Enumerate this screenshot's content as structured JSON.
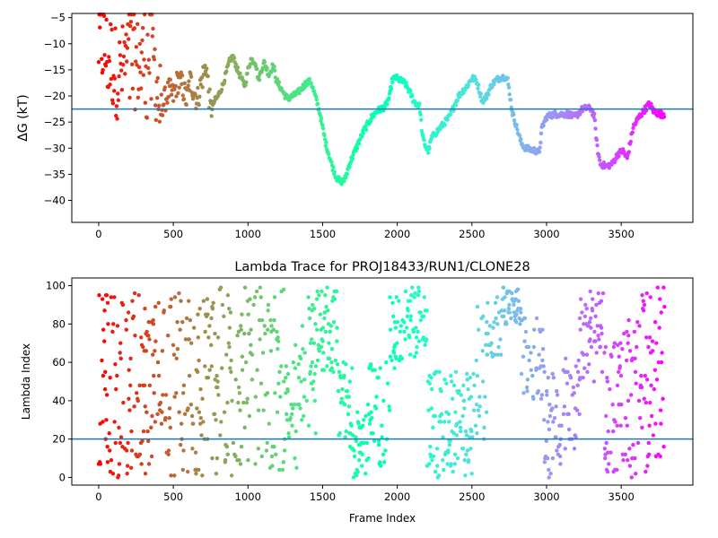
{
  "chart_data": [
    {
      "type": "scatter",
      "title": "",
      "xlabel": "",
      "ylabel": "ΔG (kT)",
      "xlim": [
        -180,
        3980
      ],
      "ylim": [
        -44.2,
        -4.2
      ],
      "xticks": [
        0,
        500,
        1000,
        1500,
        2000,
        2500,
        3000,
        3500
      ],
      "yticks": [
        -40,
        -35,
        -30,
        -25,
        -20,
        -15,
        -10,
        -5
      ],
      "hline": -22.5,
      "hline_color": "#1f77b4",
      "colormap": "rainbow",
      "x_max": 3790,
      "grid": false,
      "legend": "none",
      "trace": [
        [
          0,
          -10
        ],
        [
          25,
          -10
        ],
        [
          50,
          -12
        ],
        [
          80,
          -13
        ],
        [
          110,
          -15
        ],
        [
          140,
          -16
        ],
        [
          175,
          -14
        ],
        [
          210,
          -12
        ],
        [
          250,
          -14
        ],
        [
          290,
          -13
        ],
        [
          330,
          -12
        ],
        [
          370,
          -13
        ],
        [
          410,
          -22
        ],
        [
          440,
          -21
        ],
        [
          470,
          -19
        ],
        [
          500,
          -20
        ],
        [
          530,
          -17
        ],
        [
          560,
          -18
        ],
        [
          590,
          -21
        ],
        [
          610,
          -17
        ],
        [
          640,
          -19
        ],
        [
          660,
          -21
        ],
        [
          690,
          -17
        ],
        [
          720,
          -14
        ],
        [
          750,
          -23
        ],
        [
          775,
          -21
        ],
        [
          800,
          -20
        ],
        [
          830,
          -18
        ],
        [
          860,
          -15
        ],
        [
          880,
          -13
        ],
        [
          900,
          -12.5
        ],
        [
          930,
          -15
        ],
        [
          960,
          -17
        ],
        [
          980,
          -18
        ],
        [
          1000,
          -15
        ],
        [
          1020,
          -13
        ],
        [
          1050,
          -13.5
        ],
        [
          1070,
          -17
        ],
        [
          1090,
          -15
        ],
        [
          1110,
          -13.5
        ],
        [
          1140,
          -16
        ],
        [
          1170,
          -14
        ],
        [
          1190,
          -17
        ],
        [
          1220,
          -18.5
        ],
        [
          1250,
          -20
        ],
        [
          1270,
          -20.5
        ],
        [
          1300,
          -20
        ],
        [
          1330,
          -19.5
        ],
        [
          1360,
          -18.5
        ],
        [
          1390,
          -17.5
        ],
        [
          1420,
          -17.2
        ],
        [
          1440,
          -19
        ],
        [
          1460,
          -21
        ],
        [
          1480,
          -23
        ],
        [
          1500,
          -26
        ],
        [
          1520,
          -29
        ],
        [
          1540,
          -31
        ],
        [
          1560,
          -33
        ],
        [
          1590,
          -35.5
        ],
        [
          1620,
          -36.5
        ],
        [
          1650,
          -36
        ],
        [
          1680,
          -33
        ],
        [
          1710,
          -31
        ],
        [
          1740,
          -29
        ],
        [
          1770,
          -27
        ],
        [
          1800,
          -25.5
        ],
        [
          1830,
          -24
        ],
        [
          1860,
          -23
        ],
        [
          1890,
          -22.5
        ],
        [
          1920,
          -22
        ],
        [
          1950,
          -20
        ],
        [
          1965,
          -17
        ],
        [
          1990,
          -16.5
        ],
        [
          2020,
          -17
        ],
        [
          2050,
          -17.5
        ],
        [
          2080,
          -19
        ],
        [
          2110,
          -21
        ],
        [
          2150,
          -22
        ],
        [
          2170,
          -28
        ],
        [
          2195,
          -30
        ],
        [
          2210,
          -30.5
        ],
        [
          2230,
          -28
        ],
        [
          2260,
          -27
        ],
        [
          2290,
          -26
        ],
        [
          2320,
          -25
        ],
        [
          2350,
          -24
        ],
        [
          2380,
          -22
        ],
        [
          2410,
          -20
        ],
        [
          2440,
          -19
        ],
        [
          2470,
          -18
        ],
        [
          2500,
          -16.5
        ],
        [
          2530,
          -17
        ],
        [
          2550,
          -19
        ],
        [
          2570,
          -21
        ],
        [
          2600,
          -20
        ],
        [
          2630,
          -18
        ],
        [
          2660,
          -17
        ],
        [
          2690,
          -16.5
        ],
        [
          2720,
          -16.3
        ],
        [
          2740,
          -17
        ],
        [
          2770,
          -23
        ],
        [
          2800,
          -26
        ],
        [
          2830,
          -29
        ],
        [
          2860,
          -30
        ],
        [
          2900,
          -30.3
        ],
        [
          2930,
          -30.5
        ],
        [
          2950,
          -31
        ],
        [
          2970,
          -26
        ],
        [
          3000,
          -24
        ],
        [
          3050,
          -23.5
        ],
        [
          3100,
          -23.5
        ],
        [
          3150,
          -23.5
        ],
        [
          3180,
          -24
        ],
        [
          3210,
          -23.5
        ],
        [
          3240,
          -22.5
        ],
        [
          3270,
          -22.3
        ],
        [
          3300,
          -22.5
        ],
        [
          3320,
          -24
        ],
        [
          3340,
          -30
        ],
        [
          3360,
          -33
        ],
        [
          3400,
          -33.5
        ],
        [
          3440,
          -33
        ],
        [
          3480,
          -31
        ],
        [
          3510,
          -30.5
        ],
        [
          3540,
          -32
        ],
        [
          3580,
          -26
        ],
        [
          3620,
          -24
        ],
        [
          3660,
          -22.5
        ],
        [
          3690,
          -21.5
        ],
        [
          3720,
          -23
        ],
        [
          3760,
          -23.5
        ],
        [
          3790,
          -23.5
        ]
      ],
      "scatter_noise": 1.4
    },
    {
      "type": "scatter",
      "title": "Lambda Trace for PROJ18433/RUN1/CLONE28",
      "xlabel": "Frame Index",
      "ylabel": "Lambda Index",
      "xlim": [
        -180,
        3980
      ],
      "ylim": [
        -4,
        104
      ],
      "xticks": [
        0,
        500,
        1000,
        1500,
        2000,
        2500,
        3000,
        3500
      ],
      "yticks": [
        0,
        20,
        40,
        60,
        80,
        100
      ],
      "hline": 20,
      "hline_color": "#1f77b4",
      "colormap": "rainbow",
      "x_max": 3790,
      "grid": false,
      "legend": "none",
      "bands": [
        [
          0,
          60,
          0,
          99
        ],
        [
          60,
          420,
          0,
          99
        ],
        [
          420,
          760,
          0,
          99
        ],
        [
          760,
          1240,
          0,
          99
        ],
        [
          1240,
          1300,
          0,
          60
        ],
        [
          1300,
          1360,
          5,
          70
        ],
        [
          1360,
          1460,
          20,
          98
        ],
        [
          1460,
          1600,
          55,
          99
        ],
        [
          1600,
          1700,
          15,
          60
        ],
        [
          1700,
          1800,
          0,
          35
        ],
        [
          1800,
          1950,
          5,
          60
        ],
        [
          1950,
          2080,
          55,
          99
        ],
        [
          2080,
          2200,
          60,
          99
        ],
        [
          2200,
          2500,
          0,
          55
        ],
        [
          2500,
          2600,
          20,
          95
        ],
        [
          2600,
          2700,
          60,
          99
        ],
        [
          2700,
          2830,
          80,
          99
        ],
        [
          2830,
          2980,
          40,
          90
        ],
        [
          2980,
          3100,
          0,
          55
        ],
        [
          3100,
          3220,
          10,
          65
        ],
        [
          3220,
          3380,
          50,
          99
        ],
        [
          3380,
          3500,
          0,
          75
        ],
        [
          3500,
          3640,
          0,
          85
        ],
        [
          3640,
          3790,
          0,
          99
        ]
      ]
    }
  ]
}
